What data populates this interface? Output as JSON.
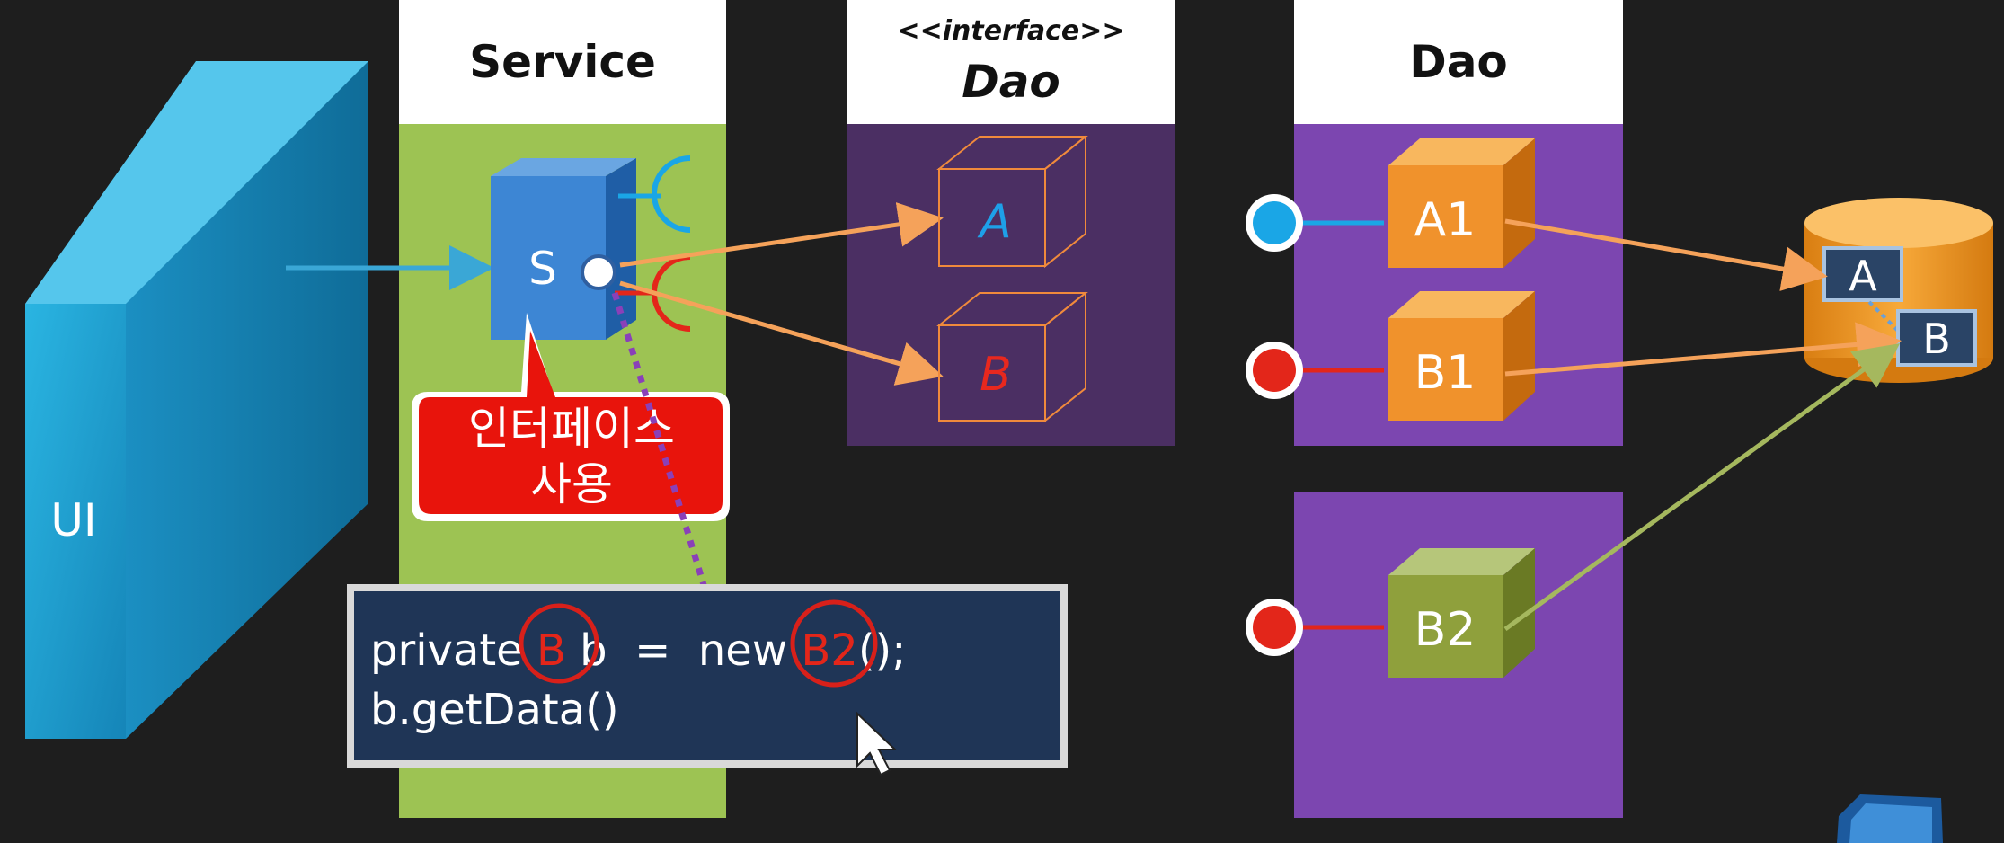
{
  "columns": {
    "service": {
      "title": "Service"
    },
    "interface_dao": {
      "stereotype": "<<interface>>",
      "title": "Dao"
    },
    "dao": {
      "title": "Dao"
    }
  },
  "ui_panel": {
    "label": "UI"
  },
  "service_box": {
    "label": "S"
  },
  "interface_boxes": [
    {
      "label": "A",
      "color": "#1ea0e8"
    },
    {
      "label": "B",
      "color": "#e8281e"
    }
  ],
  "dao_impls": [
    {
      "label": "A1",
      "color": "#f0922c"
    },
    {
      "label": "B1",
      "color": "#f0922c"
    },
    {
      "label": "B2",
      "color": "#8fa03c"
    }
  ],
  "callout": {
    "line1": "인터페이스",
    "line2": "사용"
  },
  "code": {
    "line1_prefix": "private ",
    "line1_type": "B",
    "line1_mid": " b  =  new ",
    "line1_impl": "B2",
    "line1_suffix": "();",
    "line2": "b.getData()"
  },
  "database": {
    "tables": [
      "A",
      "B"
    ]
  },
  "colors": {
    "background": "#1e1e1e",
    "service_column": "#9dc353",
    "interface_column": "#4b2f63",
    "dao_column": "#7c46b0",
    "blue": "#1aa6e6",
    "red": "#e3261a",
    "orange_line": "#f5a25a",
    "green_line": "#a5b85e"
  }
}
